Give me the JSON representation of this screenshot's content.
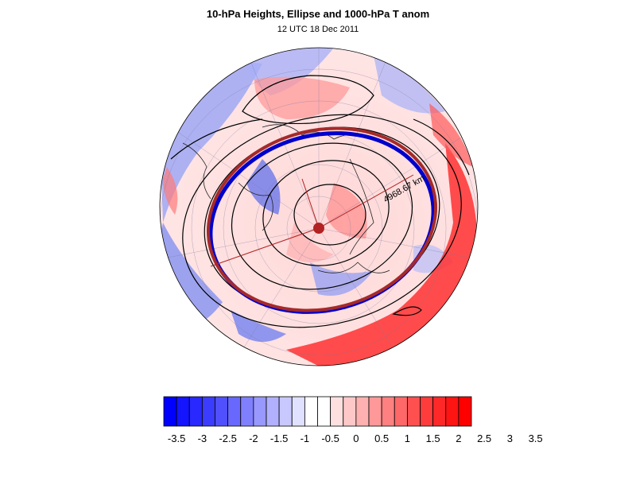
{
  "title": "10-hPa Heights, Ellipse and 1000-hPa T anom",
  "subtitle": "12 UTC 18 Dec 2011",
  "ellipse_annotation": "4968.67 km",
  "map": {
    "projection": "polar-stereographic (north pole)",
    "filled_field": "1000-hPa temperature anomaly",
    "contour_field": "10-hPa geopotential heights",
    "ellipse_colors": {
      "outer": "#a52a2a",
      "inner": "#0000cc"
    },
    "pole_marker_color": "#b22222"
  },
  "colorbar": {
    "levels": [
      "-3.5",
      "-3",
      "-2.5",
      "-2",
      "-1.5",
      "-1",
      "-0.5",
      "0",
      "0.5",
      "1",
      "1.5",
      "2",
      "2.5",
      "3",
      "3.5"
    ],
    "colors": [
      "#0000ff",
      "#1414ff",
      "#2828ff",
      "#3c3cff",
      "#5050ff",
      "#6868ff",
      "#8080ff",
      "#9898ff",
      "#b0b0ff",
      "#c8c8ff",
      "#e0e0ff",
      "#ffffff",
      "#ffffff",
      "#ffe0e0",
      "#ffc8c8",
      "#ffb0b0",
      "#ff9898",
      "#ff8080",
      "#ff6868",
      "#ff5050",
      "#ff3c3c",
      "#ff2828",
      "#ff1414",
      "#ff0000"
    ]
  }
}
